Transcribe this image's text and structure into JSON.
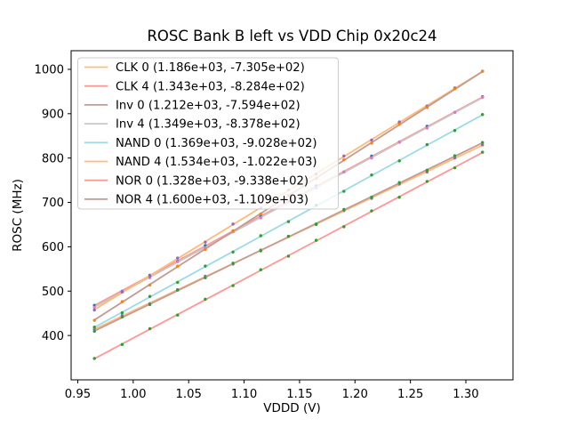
{
  "figure": {
    "kind": "matplotlib-figure"
  },
  "chart_data": {
    "type": "scatter",
    "title": "ROSC Bank B left vs VDD Chip 0x20c24",
    "xlabel": "VDDD (V)",
    "ylabel": "ROSC (MHz)",
    "grid": false,
    "legend_position": "upper-left",
    "xlim": [
      0.944,
      1.3425
    ],
    "ylim": [
      300,
      1042
    ],
    "x_ticks": {
      "values": [
        0.95,
        1.0,
        1.05,
        1.1,
        1.15,
        1.2,
        1.25,
        1.3
      ],
      "labels": [
        "0.95",
        "1.00",
        "1.05",
        "1.10",
        "1.15",
        "1.20",
        "1.25",
        "1.30"
      ]
    },
    "y_ticks": {
      "values": [
        400,
        500,
        600,
        700,
        800,
        900,
        1000
      ],
      "labels": [
        "400",
        "500",
        "600",
        "700",
        "800",
        "900",
        "1000"
      ]
    },
    "x": [
      0.965,
      0.99,
      1.015,
      1.04,
      1.065,
      1.09,
      1.115,
      1.14,
      1.165,
      1.19,
      1.215,
      1.24,
      1.265,
      1.29,
      1.315
    ],
    "series": [
      {
        "name": "CLK 0",
        "label": "CLK 0 (1.186e+03, -7.305e+02)",
        "fit": {
          "slope": 1186,
          "intercept": -730.5
        },
        "line_color": "#ffbb78",
        "marker_color": "#9467bd",
        "y": [
          414.2,
          445.1,
          471.9,
          503.5,
          533.8,
          560.9,
          592.6,
          623.4,
          650.0,
          681.6,
          709.2,
          741.3,
          768.5,
          800.2,
          829.6
        ]
      },
      {
        "name": "CLK 4",
        "label": "CLK 4 (1.343e+03, -8.284e+02)",
        "fit": {
          "slope": 1343,
          "intercept": -828.4
        },
        "line_color": "#ff9896",
        "marker_color": "#1f77b4",
        "y": [
          468.0,
          499.9,
          536.1,
          567.2,
          603.0,
          634.4,
          670.2,
          701.5,
          737.4,
          768.7,
          804.5,
          835.8,
          871.7,
          903.0,
          938.2
        ]
      },
      {
        "name": "Inv 0",
        "label": "Inv 0 (1.212e+03, -7.594e+02)",
        "fit": {
          "slope": 1212,
          "intercept": -759.4
        },
        "line_color": "#c49c94",
        "marker_color": "#2ca02c",
        "y": [
          409.5,
          441.8,
          469.6,
          502.3,
          530.2,
          563.0,
          590.8,
          623.5,
          651.4,
          684.1,
          712.0,
          744.7,
          772.6,
          805.3,
          835.1
        ]
      },
      {
        "name": "Inv 4",
        "label": "Inv 4 (1.349e+03, -8.378e+02)",
        "fit": {
          "slope": 1349,
          "intercept": -837.8
        },
        "line_color": "#c7c7c7",
        "marker_color": "#e377c2",
        "y": [
          463.2,
          498.9,
          530.2,
          566.4,
          597.7,
          633.8,
          665.1,
          701.3,
          732.6,
          768.7,
          800.0,
          836.2,
          867.5,
          903.6,
          936.8
        ]
      },
      {
        "name": "NAND 0",
        "label": "NAND 0 (1.369e+03, -9.028e+02)",
        "fit": {
          "slope": 1369,
          "intercept": -902.8
        },
        "line_color": "#9edae5",
        "marker_color": "#2ca02c",
        "y": [
          418.9,
          451.3,
          488.0,
          519.8,
          556.5,
          588.2,
          624.9,
          656.7,
          693.4,
          725.1,
          761.8,
          793.6,
          830.3,
          862.0,
          898.1
        ]
      },
      {
        "name": "NAND 4",
        "label": "NAND 4 (1.534e+03, -1.022e+03)",
        "fit": {
          "slope": 1534,
          "intercept": -1022
        },
        "line_color": "#ffbb78",
        "marker_color": "#9467bd",
        "y": [
          457.5,
          498.0,
          533.9,
          574.6,
          610.5,
          651.3,
          687.2,
          728.0,
          763.9,
          804.7,
          840.6,
          881.4,
          917.3,
          958.1,
          995.8
        ]
      },
      {
        "name": "NOR 0",
        "label": "NOR 0 (1.328e+03, -9.338e+02)",
        "fit": {
          "slope": 1328,
          "intercept": -933.8
        },
        "line_color": "#ff9896",
        "marker_color": "#2ca02c",
        "y": [
          348.2,
          379.7,
          415.4,
          446.0,
          481.8,
          512.4,
          548.2,
          578.8,
          614.6,
          645.2,
          681.0,
          711.6,
          747.4,
          778.0,
          813.2
        ]
      },
      {
        "name": "NOR 4",
        "label": "NOR 4 (1.600e+03, -1.109e+03)",
        "fit": {
          "slope": 1600,
          "intercept": -1109
        },
        "line_color": "#c49c94",
        "marker_color": "#ff7f0e",
        "y": [
          434.3,
          476.2,
          513.8,
          556.2,
          593.8,
          636.2,
          673.8,
          716.2,
          753.8,
          796.2,
          833.8,
          876.2,
          913.8,
          956.2,
          995.6
        ]
      }
    ]
  },
  "colors": {
    "background": "#ffffff",
    "spine": "#000000",
    "tick_text": "#000000",
    "legend_border": "#cccccc",
    "legend_fill": "#ffffff"
  }
}
